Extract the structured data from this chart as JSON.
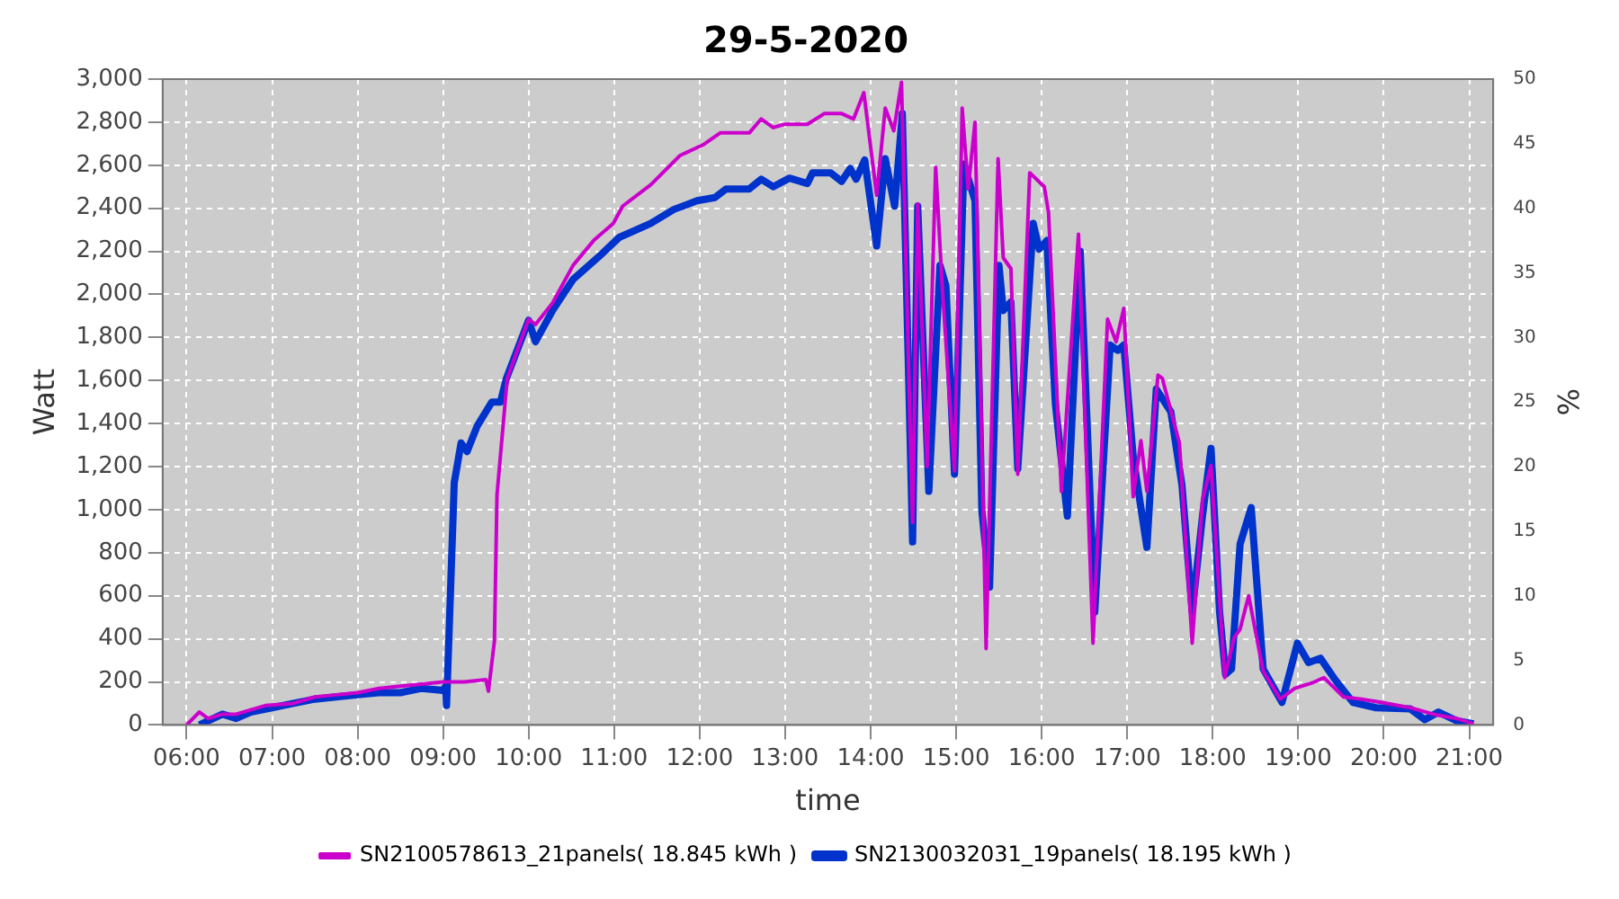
{
  "chart_data": {
    "type": "line",
    "title": "29-5-2020",
    "xlabel": "time",
    "ylabel": "Watt",
    "y2label": "%",
    "xlim": [
      5.72,
      21.28
    ],
    "xticks": [
      {
        "value": 6,
        "label": "06:00"
      },
      {
        "value": 7,
        "label": "07:00"
      },
      {
        "value": 8,
        "label": "08:00"
      },
      {
        "value": 9,
        "label": "09:00"
      },
      {
        "value": 10,
        "label": "10:00"
      },
      {
        "value": 11,
        "label": "11:00"
      },
      {
        "value": 12,
        "label": "12:00"
      },
      {
        "value": 13,
        "label": "13:00"
      },
      {
        "value": 14,
        "label": "14:00"
      },
      {
        "value": 15,
        "label": "15:00"
      },
      {
        "value": 16,
        "label": "16:00"
      },
      {
        "value": 17,
        "label": "17:00"
      },
      {
        "value": 18,
        "label": "18:00"
      },
      {
        "value": 19,
        "label": "19:00"
      },
      {
        "value": 20,
        "label": "20:00"
      },
      {
        "value": 21,
        "label": "21:00"
      }
    ],
    "ylim": [
      0,
      3000
    ],
    "yticks": [
      0,
      200,
      400,
      600,
      800,
      {
        "value": 1000,
        "label": "1,000"
      },
      {
        "value": 1200,
        "label": "1,200"
      },
      {
        "value": 1400,
        "label": "1,400"
      },
      {
        "value": 1600,
        "label": "1,600"
      },
      {
        "value": 1800,
        "label": "1,800"
      },
      {
        "value": 2000,
        "label": "2,000"
      },
      {
        "value": 2200,
        "label": "2,200"
      },
      {
        "value": 2400,
        "label": "2,400"
      },
      {
        "value": 2600,
        "label": "2,600"
      },
      {
        "value": 2800,
        "label": "2,800"
      },
      {
        "value": 3000,
        "label": "3,000"
      }
    ],
    "y2lim": [
      0,
      50
    ],
    "y2ticks": [
      0,
      5,
      10,
      15,
      20,
      25,
      30,
      35,
      40,
      45,
      50
    ],
    "grid": true,
    "legend": "bottom",
    "marker": "none",
    "line_style": "solid",
    "series": [
      {
        "name": "SN2100578613_21panels( 18.845 kWh )",
        "color": "#cc00cc",
        "x": [
          6.0,
          6.15,
          6.25,
          6.42,
          6.58,
          6.75,
          6.92,
          7.25,
          7.5,
          7.75,
          8.0,
          8.25,
          8.5,
          8.75,
          9.0,
          9.25,
          9.5,
          9.53,
          9.6,
          9.63,
          9.75,
          10.0,
          10.08,
          10.28,
          10.52,
          10.76,
          10.99,
          11.1,
          11.43,
          11.77,
          12.04,
          12.24,
          12.58,
          12.72,
          12.86,
          12.99,
          13.26,
          13.46,
          13.66,
          13.8,
          13.92,
          14.07,
          14.17,
          14.27,
          14.36,
          14.49,
          14.55,
          14.66,
          14.76,
          14.84,
          14.98,
          15.07,
          15.14,
          15.22,
          15.35,
          15.49,
          15.55,
          15.64,
          15.72,
          15.86,
          16.03,
          16.08,
          16.23,
          16.43,
          16.6,
          16.77,
          16.87,
          16.96,
          17.07,
          17.16,
          17.23,
          17.36,
          17.41,
          17.61,
          17.76,
          17.88,
          17.98,
          18.14,
          18.25,
          18.32,
          18.42,
          18.59,
          18.79,
          18.96,
          19.16,
          19.3,
          19.53,
          19.74,
          19.97,
          20.31,
          20.58,
          20.85,
          21.05
        ],
        "values": [
          0,
          60,
          30,
          50,
          50,
          70,
          90,
          100,
          130,
          140,
          150,
          170,
          180,
          190,
          200,
          200,
          210,
          157,
          390,
          1070,
          1610,
          1885,
          1860,
          1960,
          2135,
          2250,
          2330,
          2410,
          2510,
          2645,
          2695,
          2750,
          2750,
          2815,
          2775,
          2790,
          2790,
          2840,
          2840,
          2815,
          2937,
          2460,
          2865,
          2760,
          2985,
          940,
          2420,
          1200,
          2590,
          2015,
          1180,
          2865,
          2490,
          2800,
          355,
          2630,
          2170,
          2120,
          1165,
          2565,
          2500,
          2380,
          1085,
          2280,
          380,
          1885,
          1780,
          1935,
          1060,
          1320,
          1085,
          1625,
          1610,
          1310,
          380,
          1045,
          1205,
          220,
          405,
          445,
          600,
          250,
          120,
          170,
          195,
          220,
          130,
          120,
          105,
          80,
          50,
          30,
          5
        ]
      },
      {
        "name": "SN2130032031_19panels( 18.195 kWh )",
        "color": "#0033cc",
        "x": [
          6.15,
          6.42,
          6.58,
          6.75,
          7.0,
          7.25,
          7.5,
          7.75,
          8.0,
          8.25,
          8.5,
          8.75,
          9.0,
          9.03,
          9.04,
          9.13,
          9.21,
          9.28,
          9.4,
          9.57,
          9.67,
          9.74,
          10.0,
          10.08,
          10.28,
          10.52,
          10.82,
          11.06,
          11.43,
          11.7,
          11.97,
          12.18,
          12.31,
          12.58,
          12.72,
          12.86,
          13.05,
          13.26,
          13.32,
          13.53,
          13.66,
          13.76,
          13.83,
          13.93,
          14.07,
          14.17,
          14.28,
          14.37,
          14.49,
          14.55,
          14.68,
          14.81,
          14.88,
          14.98,
          15.09,
          15.22,
          15.3,
          15.39,
          15.5,
          15.55,
          15.64,
          15.72,
          15.9,
          15.97,
          16.06,
          16.16,
          16.3,
          16.45,
          16.62,
          16.8,
          16.89,
          16.96,
          17.07,
          17.23,
          17.34,
          17.51,
          17.64,
          17.76,
          17.88,
          17.98,
          18.08,
          18.15,
          18.22,
          18.32,
          18.45,
          18.59,
          18.81,
          18.99,
          19.12,
          19.26,
          19.43,
          19.64,
          19.91,
          20.31,
          20.48,
          20.64,
          20.85,
          21.05
        ],
        "values": [
          0,
          50,
          30,
          60,
          80,
          100,
          120,
          130,
          140,
          150,
          150,
          170,
          160,
          180,
          90,
          1125,
          1310,
          1270,
          1390,
          1500,
          1500,
          1610,
          1880,
          1780,
          1925,
          2070,
          2175,
          2265,
          2330,
          2395,
          2435,
          2450,
          2490,
          2490,
          2535,
          2500,
          2540,
          2515,
          2565,
          2565,
          2525,
          2585,
          2535,
          2625,
          2225,
          2630,
          2410,
          2840,
          850,
          2410,
          1085,
          2135,
          2040,
          1165,
          2605,
          2435,
          995,
          640,
          2135,
          1925,
          1965,
          1190,
          2330,
          2210,
          2250,
          1490,
          970,
          2200,
          525,
          1765,
          1740,
          1765,
          1245,
          825,
          1560,
          1455,
          1115,
          525,
          970,
          1285,
          525,
          235,
          260,
          840,
          1010,
          260,
          105,
          380,
          290,
          310,
          210,
          105,
          80,
          75,
          25,
          60,
          20,
          5
        ]
      }
    ]
  }
}
